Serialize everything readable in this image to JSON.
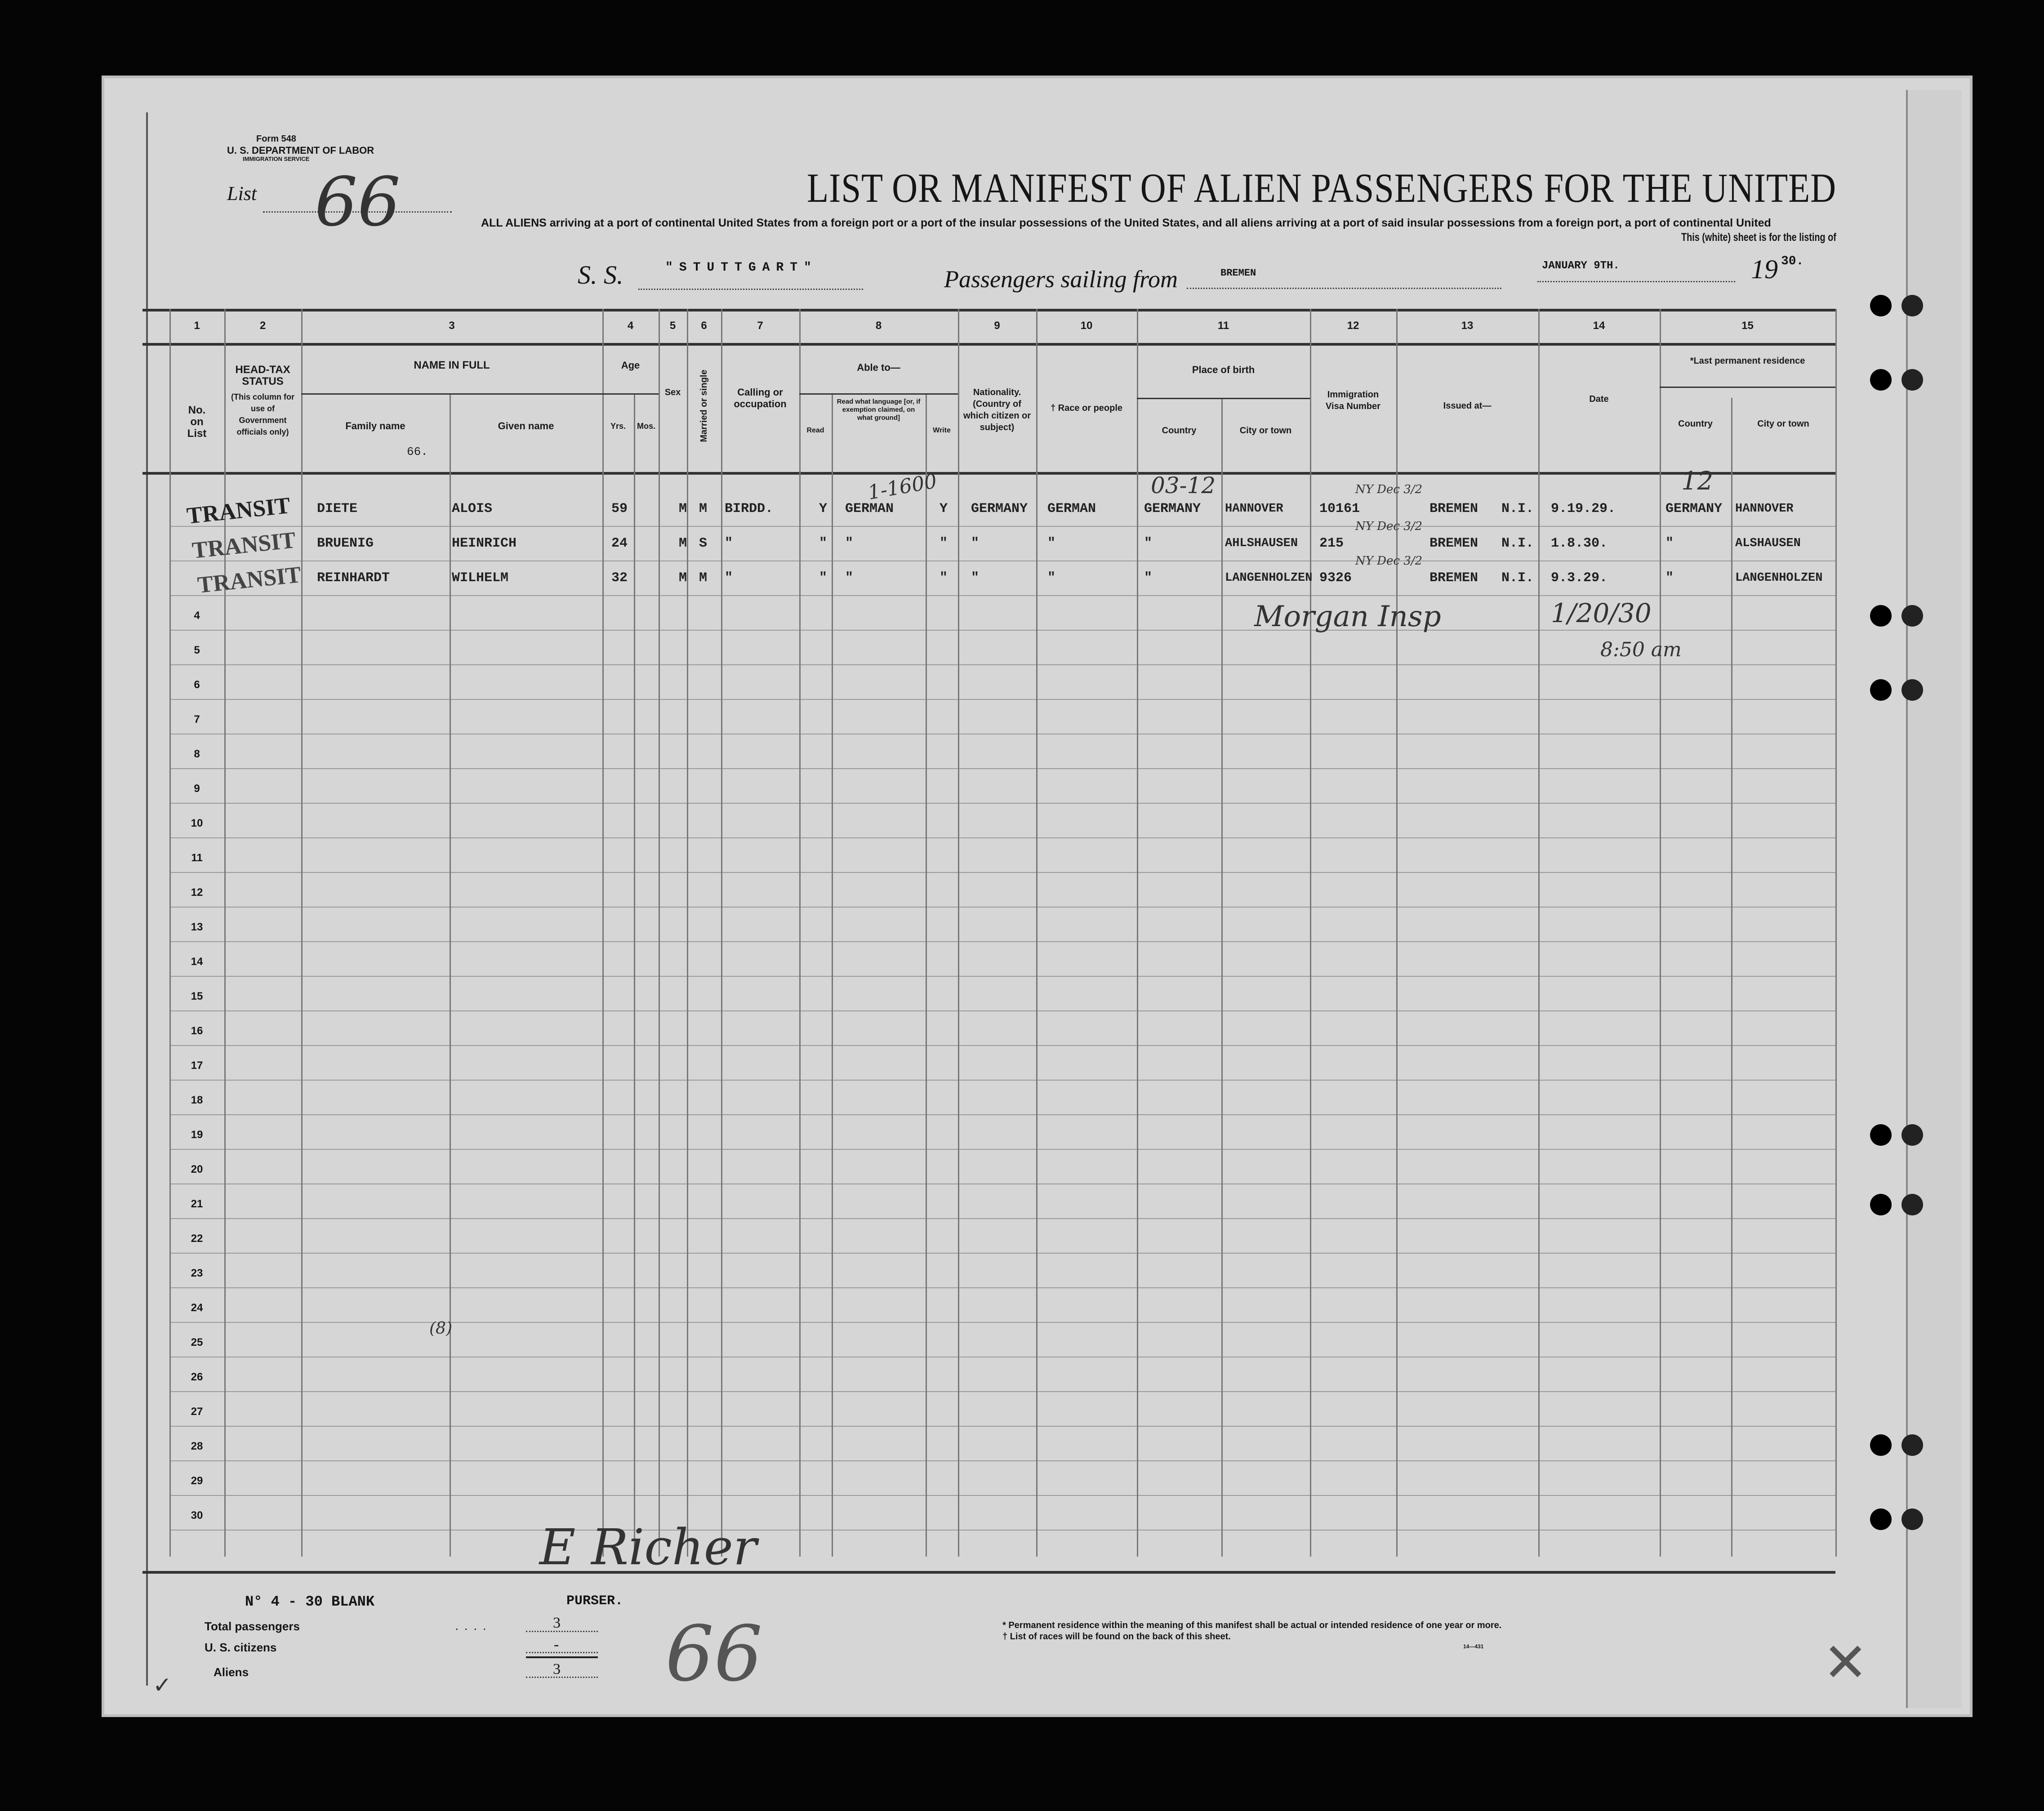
{
  "form": {
    "form_no": "Form 548",
    "department": "U. S. DEPARTMENT OF LABOR",
    "service": "IMMIGRATION SERVICE",
    "list_label": "List",
    "list_number": "66"
  },
  "header": {
    "title": "LIST OR MANIFEST OF ALIEN PASSENGERS FOR THE UNITED",
    "subtitle_line1": "ALL ALIENS arriving at a port of continental United States from a foreign port or a port of the insular possessions of the United States, and all aliens arriving at a port of said insular possessions from a foreign port, a port of continental United",
    "subtitle_line2": "This (white) sheet is for the listing of",
    "ship_label": "S. S.",
    "ship_name": "\"STUTTGART\"",
    "sailing_label": "Passengers sailing from",
    "port": "BREMEN",
    "date": "JANUARY 9TH.",
    "year_prefix": "19",
    "year_suffix": "30."
  },
  "columns": {
    "numbers": [
      "1",
      "2",
      "3",
      "4",
      "5",
      "6",
      "7",
      "8",
      "9",
      "10",
      "11",
      "12",
      "13",
      "14",
      "15"
    ],
    "no_on_list": "No. on List",
    "head_tax": "HEAD-TAX STATUS",
    "head_tax_note": "(This column for use of Government officials only)",
    "name_in_full": "NAME IN FULL",
    "family_name": "Family name",
    "given_name": "Given name",
    "age": "Age",
    "yrs": "Yrs.",
    "mos": "Mos.",
    "sex": "Sex",
    "married": "Married or single",
    "calling": "Calling or occupation",
    "able_to": "Able to—",
    "read": "Read",
    "read_language": "Read what language [or, if exemption claimed, on what ground]",
    "write": "Write",
    "nationality": "Nationality. (Country of which citizen or subject)",
    "race": "† Race or people",
    "place_of_birth": "Place of birth",
    "country": "Country",
    "city": "City or town",
    "visa": "Immigration Visa Number",
    "issued_at": "Issued at—",
    "date": "Date",
    "last_residence": "*Last permanent residence",
    "res_country": "Country",
    "res_city": "City or town",
    "family_note": "66."
  },
  "rows": [
    {
      "head_tax": "TRANSIT",
      "family": "DIETE",
      "given": "ALOIS",
      "yrs": "59",
      "sex": "M",
      "married": "M",
      "calling": "BIRDD.",
      "read": "Y",
      "language": "GERMAN",
      "write": "Y",
      "nationality": "GERMANY",
      "race": "GERMAN",
      "birth_country": "GERMANY",
      "birth_city": "HANNOVER",
      "visa": "10161",
      "issued_at": "BREMEN",
      "issued_code": "N.I.",
      "date": "9.19.29.",
      "res_country": "GERMANY",
      "res_city": "HANNOVER"
    },
    {
      "head_tax": "TRANSIT",
      "family": "BRUENIG",
      "given": "HEINRICH",
      "yrs": "24",
      "sex": "M",
      "married": "S",
      "calling": "\"",
      "read": "\"",
      "language": "\"",
      "write": "\"",
      "nationality": "\"",
      "race": "\"",
      "birth_country": "\"",
      "birth_city": "AHLSHAUSEN",
      "visa": "215",
      "issued_at": "BREMEN",
      "issued_code": "N.I.",
      "date": "1.8.30.",
      "res_country": "\"",
      "res_city": "ALSHAUSEN"
    },
    {
      "head_tax": "TRANSIT",
      "family": "REINHARDT",
      "given": "WILHELM",
      "yrs": "32",
      "sex": "M",
      "married": "M",
      "calling": "\"",
      "read": "\"",
      "language": "\"",
      "write": "\"",
      "nationality": "\"",
      "race": "\"",
      "birth_country": "\"",
      "birth_city": "LANGENHOLZEN",
      "visa": "9326",
      "issued_at": "BREMEN",
      "issued_code": "N.I.",
      "date": "9.3.29.",
      "res_country": "\"",
      "res_city": "LANGENHOLZEN"
    }
  ],
  "row_numbers": [
    "4",
    "5",
    "6",
    "7",
    "8",
    "9",
    "10",
    "11",
    "12",
    "13",
    "14",
    "15",
    "16",
    "17",
    "18",
    "19",
    "20",
    "21",
    "22",
    "23",
    "24",
    "25",
    "26",
    "27",
    "28",
    "29",
    "30"
  ],
  "annotations": {
    "language_note": "1-1600",
    "birth_note": "03-12",
    "visa_note": "NY Dec 3/2",
    "residence_note": "12",
    "inspector": "Morgan Insp",
    "inspection_date": "1/20/30",
    "inspection_time": "8:50 am",
    "stray_mark": "(8)"
  },
  "footer": {
    "blank_note": "N° 4 - 30 BLANK",
    "signature": "E Richer",
    "purser": "PURSER.",
    "total_label": "Total passengers",
    "total_value": "3",
    "citizens_label": "U. S. citizens",
    "citizens_value": "-",
    "aliens_label": "Aliens",
    "aliens_value": "3",
    "footnote1": "* Permanent residence within the meaning of this manifest shall be actual or intended residence of one year or more.",
    "footnote2": "† List of races will be found on the back of this sheet.",
    "form_code": "14—431",
    "handwritten_list": "66"
  },
  "colors": {
    "paper": "#d6d6d6",
    "ink": "#151515",
    "background": "#050505"
  }
}
